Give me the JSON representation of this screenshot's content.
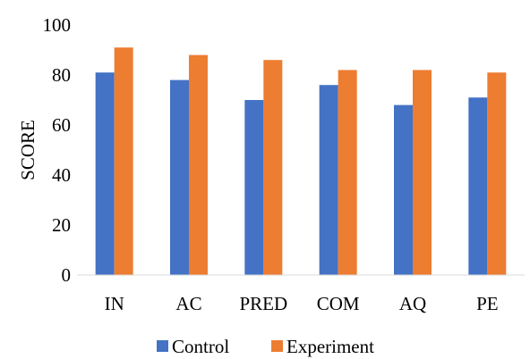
{
  "chart_data": {
    "type": "bar",
    "title": "",
    "xlabel": "",
    "ylabel": "SCORE",
    "categories": [
      "IN",
      "AC",
      "PRED",
      "COM",
      "AQ",
      "PE"
    ],
    "series": [
      {
        "name": "Control",
        "color": "#4472C4",
        "values": [
          81,
          78,
          70,
          76,
          68,
          71
        ]
      },
      {
        "name": "Experiment",
        "color": "#ED7D31",
        "values": [
          91,
          88,
          86,
          82,
          82,
          81
        ]
      }
    ],
    "ylim": [
      0,
      100
    ],
    "yticks": [
      0,
      20,
      40,
      60,
      80,
      100
    ],
    "grid": false,
    "legend_position": "bottom"
  }
}
